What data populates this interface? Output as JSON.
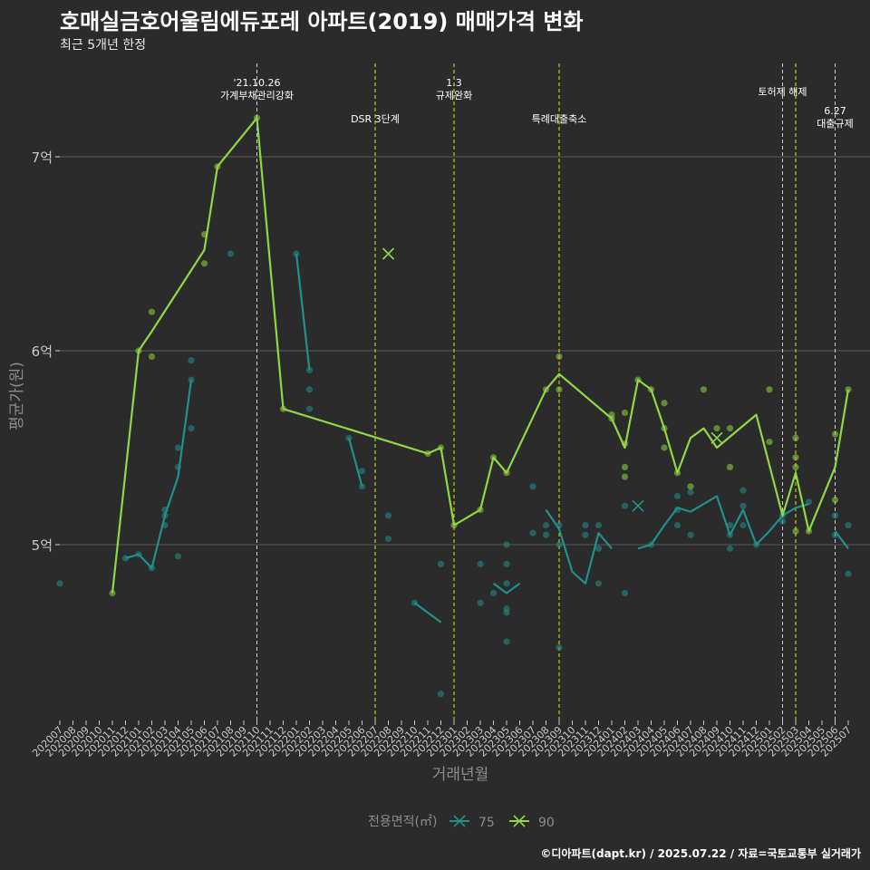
{
  "title": "호매실금호어울림에듀포레 아파트(2019) 매매가격 변화",
  "subtitle": "최근 5개년 한정",
  "caption": "©디아파트(dapt.kr) / 2025.07.22 / 자료=국토교통부 실거래가",
  "colors": {
    "background": "#2b2b2b",
    "grid": "#5a5a5a",
    "series_75": "#21908d",
    "series_90": "#90d743",
    "event_line": "#e6e600",
    "axis_text": "#c8c8c8",
    "axis_title": "#8c8c8c"
  },
  "chart_data": {
    "type": "line",
    "xlabel": "거래년월",
    "ylabel": "평균가(원)",
    "ylim": [
      4.1,
      7.45
    ],
    "yticks": [
      {
        "value": 5,
        "label": "5억"
      },
      {
        "value": 6,
        "label": "6억"
      },
      {
        "value": 7,
        "label": "7억"
      }
    ],
    "x": [
      "202007",
      "202008",
      "202009",
      "202010",
      "202011",
      "202012",
      "202101",
      "202102",
      "202103",
      "202104",
      "202105",
      "202106",
      "202107",
      "202108",
      "202109",
      "202110",
      "202111",
      "202112",
      "202201",
      "202202",
      "202203",
      "202204",
      "202205",
      "202206",
      "202207",
      "202208",
      "202209",
      "202210",
      "202211",
      "202212",
      "202301",
      "202302",
      "202303",
      "202304",
      "202305",
      "202306",
      "202307",
      "202308",
      "202309",
      "202310",
      "202311",
      "202312",
      "202401",
      "202402",
      "202403",
      "202404",
      "202405",
      "202406",
      "202407",
      "202408",
      "202409",
      "202410",
      "202411",
      "202412",
      "202501",
      "202502",
      "202503",
      "202504",
      "202505",
      "202506",
      "202507"
    ],
    "legend_title": "전용면적(㎡)",
    "series": [
      {
        "name": "75",
        "line": [
          [
            "202012",
            4.93
          ],
          [
            "202101",
            4.95
          ],
          [
            "202102",
            4.88
          ],
          [
            "202103",
            5.15
          ],
          [
            "202104",
            5.35
          ],
          [
            "202105",
            5.85
          ],
          null,
          [
            "202201",
            6.5
          ],
          [
            "202202",
            5.9
          ],
          null,
          [
            "202205",
            5.55
          ],
          [
            "202206",
            5.3
          ],
          null,
          [
            "202210",
            4.7
          ],
          [
            "202212",
            4.6
          ],
          null,
          [
            "202304",
            4.8
          ],
          [
            "202305",
            4.75
          ],
          [
            "202306",
            4.8
          ],
          null,
          [
            "202308",
            5.18
          ],
          [
            "202309",
            5.08
          ],
          [
            "202310",
            4.86
          ],
          [
            "202311",
            4.8
          ],
          [
            "202312",
            5.06
          ],
          [
            "202401",
            4.98
          ],
          null,
          [
            "202403",
            4.98
          ],
          [
            "202404",
            5.0
          ],
          [
            "202405",
            5.1
          ],
          [
            "202406",
            5.19
          ],
          [
            "202407",
            5.17
          ],
          [
            "202408",
            5.21
          ],
          [
            "202409",
            5.25
          ],
          [
            "202410",
            5.05
          ],
          [
            "202411",
            5.18
          ],
          [
            "202412",
            5.0
          ],
          [
            "202501",
            5.07
          ],
          [
            "202502",
            5.15
          ],
          [
            "202503",
            5.19
          ],
          [
            "202504",
            5.21
          ],
          null,
          [
            "202506",
            5.07
          ],
          [
            "202507",
            4.98
          ]
        ],
        "points": [
          [
            "202007",
            4.8
          ],
          [
            "202012",
            4.93
          ],
          [
            "202101",
            4.95
          ],
          [
            "202102",
            4.88
          ],
          [
            "202103",
            5.18
          ],
          [
            "202103",
            5.15
          ],
          [
            "202103",
            5.1
          ],
          [
            "202104",
            5.5
          ],
          [
            "202104",
            5.4
          ],
          [
            "202104",
            4.94
          ],
          [
            "202105",
            5.95
          ],
          [
            "202105",
            5.85
          ],
          [
            "202105",
            5.6
          ],
          [
            "202108",
            6.5
          ],
          [
            "202201",
            6.5
          ],
          [
            "202202",
            5.9
          ],
          [
            "202202",
            5.8
          ],
          [
            "202202",
            5.7
          ],
          [
            "202205",
            5.55
          ],
          [
            "202206",
            5.38
          ],
          [
            "202206",
            5.3
          ],
          [
            "202208",
            5.15
          ],
          [
            "202208",
            5.03
          ],
          [
            "202210",
            4.7
          ],
          [
            "202212",
            4.9
          ],
          [
            "202212",
            4.23
          ],
          [
            "202303",
            4.9
          ],
          [
            "202303",
            4.7
          ],
          [
            "202304",
            4.75
          ],
          [
            "202305",
            5.0
          ],
          [
            "202305",
            4.9
          ],
          [
            "202305",
            4.8
          ],
          [
            "202305",
            4.67
          ],
          [
            "202305",
            4.65
          ],
          [
            "202305",
            4.5
          ],
          [
            "202307",
            5.3
          ],
          [
            "202307",
            5.06
          ],
          [
            "202308",
            5.1
          ],
          [
            "202308",
            5.05
          ],
          [
            "202309",
            5.1
          ],
          [
            "202309",
            5.0
          ],
          [
            "202309",
            4.47
          ],
          [
            "202311",
            5.1
          ],
          [
            "202311",
            5.05
          ],
          [
            "202312",
            5.1
          ],
          [
            "202312",
            4.98
          ],
          [
            "202312",
            4.8
          ],
          [
            "202402",
            5.2
          ],
          [
            "202402",
            4.75
          ],
          [
            "202404",
            5.0
          ],
          [
            "202406",
            5.25
          ],
          [
            "202406",
            5.18
          ],
          [
            "202406",
            5.1
          ],
          [
            "202407",
            5.27
          ],
          [
            "202407",
            5.05
          ],
          [
            "202410",
            5.1
          ],
          [
            "202410",
            5.05
          ],
          [
            "202410",
            4.98
          ],
          [
            "202411",
            5.28
          ],
          [
            "202411",
            5.2
          ],
          [
            "202411",
            5.1
          ],
          [
            "202412",
            5.0
          ],
          [
            "202502",
            5.15
          ],
          [
            "202502",
            5.12
          ],
          [
            "202504",
            5.22
          ],
          [
            "202506",
            5.15
          ],
          [
            "202506",
            5.05
          ],
          [
            "202507",
            5.1
          ],
          [
            "202507",
            4.85
          ]
        ],
        "crosses": [
          [
            "202403",
            5.2
          ]
        ]
      },
      {
        "name": "90",
        "line": [
          [
            "202011",
            4.75
          ],
          [
            "202101",
            6.0
          ],
          [
            "202102",
            6.1
          ],
          [
            "202106",
            6.52
          ],
          [
            "202107",
            6.95
          ],
          [
            "202110",
            7.2
          ],
          [
            "202112",
            5.7
          ],
          [
            "202211",
            5.47
          ],
          [
            "202212",
            5.5
          ],
          [
            "202301",
            5.1
          ],
          [
            "202303",
            5.18
          ],
          [
            "202304",
            5.45
          ],
          [
            "202305",
            5.37
          ],
          [
            "202308",
            5.8
          ],
          [
            "202309",
            5.88
          ],
          [
            "202401",
            5.65
          ],
          [
            "202402",
            5.5
          ],
          [
            "202403",
            5.85
          ],
          [
            "202404",
            5.8
          ],
          [
            "202405",
            5.6
          ],
          [
            "202406",
            5.37
          ],
          [
            "202407",
            5.55
          ],
          [
            "202408",
            5.6
          ],
          [
            "202409",
            5.5
          ],
          [
            "202412",
            5.67
          ],
          [
            "202502",
            5.15
          ],
          [
            "202503",
            5.37
          ],
          [
            "202504",
            5.07
          ],
          [
            "202506",
            5.4
          ],
          [
            "202507",
            5.8
          ]
        ],
        "points": [
          [
            "202011",
            4.75
          ],
          [
            "202101",
            6.0
          ],
          [
            "202102",
            6.2
          ],
          [
            "202102",
            5.97
          ],
          [
            "202106",
            6.6
          ],
          [
            "202106",
            6.45
          ],
          [
            "202107",
            6.95
          ],
          [
            "202110",
            7.2
          ],
          [
            "202112",
            5.7
          ],
          [
            "202211",
            5.47
          ],
          [
            "202212",
            5.5
          ],
          [
            "202301",
            5.1
          ],
          [
            "202303",
            5.18
          ],
          [
            "202304",
            5.45
          ],
          [
            "202305",
            5.37
          ],
          [
            "202308",
            5.8
          ],
          [
            "202309",
            5.97
          ],
          [
            "202309",
            5.8
          ],
          [
            "202401",
            5.67
          ],
          [
            "202401",
            5.65
          ],
          [
            "202402",
            5.68
          ],
          [
            "202402",
            5.52
          ],
          [
            "202402",
            5.4
          ],
          [
            "202402",
            5.35
          ],
          [
            "202403",
            5.85
          ],
          [
            "202404",
            5.8
          ],
          [
            "202405",
            5.73
          ],
          [
            "202405",
            5.6
          ],
          [
            "202405",
            5.5
          ],
          [
            "202406",
            5.37
          ],
          [
            "202407",
            5.3
          ],
          [
            "202408",
            5.8
          ],
          [
            "202409",
            5.6
          ],
          [
            "202410",
            5.6
          ],
          [
            "202410",
            5.4
          ],
          [
            "202501",
            5.8
          ],
          [
            "202501",
            5.53
          ],
          [
            "202503",
            5.55
          ],
          [
            "202503",
            5.45
          ],
          [
            "202503",
            5.4
          ],
          [
            "202503",
            5.07
          ],
          [
            "202504",
            5.07
          ],
          [
            "202506",
            5.57
          ],
          [
            "202506",
            5.23
          ],
          [
            "202507",
            5.8
          ]
        ],
        "crosses": [
          [
            "202208",
            6.5
          ],
          [
            "202409",
            5.55
          ]
        ]
      }
    ],
    "events": [
      {
        "x": "202110",
        "label": [
          "'21.10.26",
          "가계부채관리강화"
        ],
        "level": 0
      },
      {
        "x": "202207",
        "label": [
          "DSR 3단계"
        ],
        "level": 2
      },
      {
        "x": "202301",
        "label": [
          "1.3",
          "규제완화"
        ],
        "level": 0
      },
      {
        "x": "202309",
        "label": [
          "특례대출축소"
        ],
        "level": 2
      },
      {
        "x": "202502",
        "label": [
          "토허제 해제"
        ],
        "level": 1
      },
      {
        "x": "202503",
        "label": [],
        "level": 1
      },
      {
        "x": "202506",
        "label": [
          "6.27",
          "대출규제"
        ],
        "level": 3
      }
    ]
  }
}
